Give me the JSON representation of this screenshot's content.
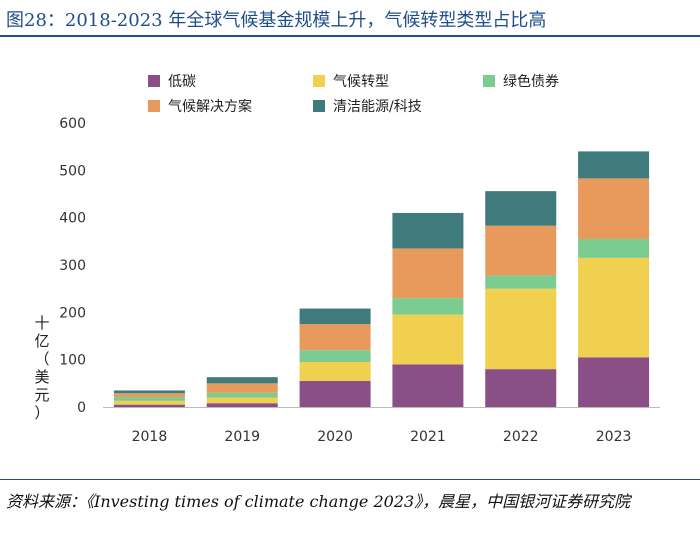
{
  "figure": {
    "title": "图28：2018-2023 年全球气候基金规模上升，气候转型类型占比高",
    "source": "资料来源：《Investing times of climate change 2023》，晨星，中国银河证券研究院"
  },
  "chart_data": {
    "type": "bar",
    "stacked": true,
    "title": "",
    "xlabel": "",
    "ylabel": "十亿（美元）",
    "ylim": [
      0,
      600
    ],
    "yticks": [
      0,
      100,
      200,
      300,
      400,
      500,
      600
    ],
    "grid": false,
    "legend_position": "top",
    "categories": [
      "2018",
      "2019",
      "2020",
      "2021",
      "2022",
      "2023"
    ],
    "series": [
      {
        "name": "低碳",
        "color": "#8a4f87",
        "values": [
          5,
          8,
          55,
          90,
          80,
          105
        ]
      },
      {
        "name": "气候转型",
        "color": "#f0d04e",
        "values": [
          8,
          12,
          40,
          105,
          170,
          210
        ]
      },
      {
        "name": "绿色债券",
        "color": "#7ccb91",
        "values": [
          8,
          10,
          25,
          35,
          28,
          40
        ]
      },
      {
        "name": "气候解决方案",
        "color": "#e89a5c",
        "values": [
          8,
          20,
          55,
          105,
          105,
          128
        ]
      },
      {
        "name": "清洁能源/科技",
        "color": "#3f7a7c",
        "values": [
          6,
          13,
          33,
          75,
          73,
          57
        ]
      }
    ]
  }
}
